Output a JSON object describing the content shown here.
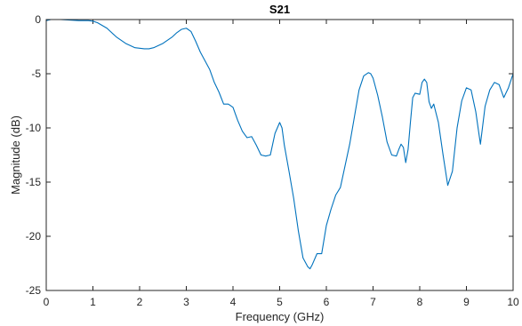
{
  "chart_data": {
    "type": "line",
    "title": "S21",
    "xlabel": "Frequency (GHz)",
    "ylabel": "Magnitude (dB)",
    "xlim": [
      0,
      10
    ],
    "ylim": [
      -25,
      0
    ],
    "xticks": [
      "0",
      "1",
      "2",
      "3",
      "4",
      "5",
      "6",
      "7",
      "8",
      "9",
      "10"
    ],
    "yticks": [
      "0",
      "-5",
      "-10",
      "-15",
      "-20",
      "-25"
    ],
    "grid": false,
    "legend": "none",
    "colors": {
      "line": "#0072BD",
      "axis": "#262626"
    },
    "series": [
      {
        "x": [
          0,
          0.1,
          0.3,
          0.5,
          0.7,
          0.9,
          1.0,
          1.1,
          1.3,
          1.5,
          1.7,
          1.9,
          2.1,
          2.2,
          2.3,
          2.5,
          2.7,
          2.8,
          2.9,
          3.0,
          3.1,
          3.2,
          3.3,
          3.4,
          3.5,
          3.6,
          3.7,
          3.8,
          3.9,
          4.0,
          4.1,
          4.2,
          4.3,
          4.4,
          4.5,
          4.6,
          4.7,
          4.8,
          4.9,
          5.0,
          5.05,
          5.1,
          5.2,
          5.3,
          5.4,
          5.5,
          5.6,
          5.65,
          5.7,
          5.8,
          5.9,
          6.0,
          6.1,
          6.2,
          6.3,
          6.4,
          6.5,
          6.6,
          6.7,
          6.8,
          6.9,
          6.95,
          7.0,
          7.1,
          7.2,
          7.3,
          7.4,
          7.5,
          7.55,
          7.6,
          7.65,
          7.7,
          7.75,
          7.8,
          7.85,
          7.9,
          8.0,
          8.05,
          8.1,
          8.15,
          8.2,
          8.25,
          8.3,
          8.4,
          8.5,
          8.6,
          8.7,
          8.8,
          8.9,
          9.0,
          9.1,
          9.2,
          9.3,
          9.4,
          9.5,
          9.6,
          9.7,
          9.8,
          9.9,
          10.0
        ],
        "values": [
          -0.1,
          0.0,
          0.0,
          -0.05,
          -0.1,
          -0.1,
          -0.15,
          -0.3,
          -0.8,
          -1.6,
          -2.2,
          -2.6,
          -2.7,
          -2.7,
          -2.6,
          -2.2,
          -1.6,
          -1.2,
          -0.9,
          -0.8,
          -1.1,
          -2.0,
          -3.0,
          -3.8,
          -4.6,
          -5.8,
          -6.7,
          -7.8,
          -7.8,
          -8.1,
          -9.3,
          -10.3,
          -10.9,
          -10.8,
          -11.6,
          -12.5,
          -12.6,
          -12.5,
          -10.5,
          -9.5,
          -10.0,
          -11.6,
          -14.0,
          -16.5,
          -19.5,
          -22.0,
          -22.8,
          -23.0,
          -22.6,
          -21.6,
          -21.6,
          -19.0,
          -17.5,
          -16.2,
          -15.5,
          -13.5,
          -11.5,
          -9.0,
          -6.5,
          -5.2,
          -4.9,
          -5.0,
          -5.4,
          -7.0,
          -9.0,
          -11.3,
          -12.5,
          -12.6,
          -12.0,
          -11.5,
          -11.8,
          -13.2,
          -12.0,
          -9.5,
          -7.2,
          -6.8,
          -6.9,
          -5.8,
          -5.5,
          -5.8,
          -7.6,
          -8.2,
          -7.8,
          -9.5,
          -12.5,
          -15.3,
          -14.0,
          -10.0,
          -7.5,
          -6.3,
          -6.5,
          -8.5,
          -11.5,
          -8.0,
          -6.5,
          -5.8,
          -6.0,
          -7.2,
          -6.3,
          -5.0
        ]
      }
    ]
  }
}
